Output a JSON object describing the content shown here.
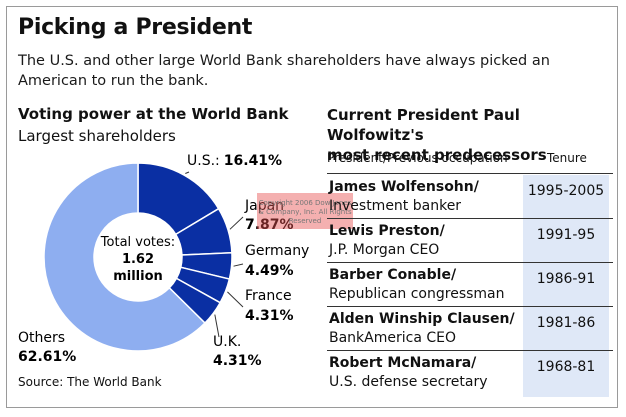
{
  "title": "Picking a President",
  "subtitle": "The U.S. and other large World Bank shareholders have always picked an American to run the bank.",
  "left": {
    "heading": "Voting power at the World Bank",
    "subheading": "Largest shareholders",
    "center_line1": "Total votes:",
    "center_line2": "1.62",
    "center_line3": "million",
    "source": "Source: The World Bank"
  },
  "chart_data": {
    "type": "pie",
    "title": "Voting power at the World Bank",
    "subtitle": "Largest shareholders",
    "center_label": "Total votes: 1.62 million",
    "slices": [
      {
        "label": "U.S.:",
        "value": 16.41,
        "value_label": "16.41%",
        "color": "#0a2fa3"
      },
      {
        "label": "Japan",
        "value": 7.87,
        "value_label": "7.87%",
        "color": "#0a2fa3"
      },
      {
        "label": "Germany",
        "value": 4.49,
        "value_label": "4.49%",
        "color": "#0a2fa3"
      },
      {
        "label": "France",
        "value": 4.31,
        "value_label": "4.31%",
        "color": "#0a2fa3"
      },
      {
        "label": "U.K.",
        "value": 4.31,
        "value_label": "4.31%",
        "color": "#0a2fa3"
      },
      {
        "label": "Others",
        "value": 62.61,
        "value_label": "62.61%",
        "color": "#8eaef0"
      }
    ]
  },
  "right": {
    "heading_line1": "Current President Paul Wolfowitz's",
    "heading_line2": "most recent predecessors",
    "col_occupation": "President/Previous occupation",
    "col_tenure": "Tenure",
    "rows": [
      {
        "name": "James Wolfensohn/",
        "occupation": "Investment banker",
        "tenure": "1995-2005"
      },
      {
        "name": "Lewis Preston/",
        "occupation": "J.P. Morgan CEO",
        "tenure": "1991-95"
      },
      {
        "name": "Barber Conable/",
        "occupation": "Republican congressman",
        "tenure": "1986-91"
      },
      {
        "name": "Alden Winship Clausen/",
        "occupation": "BankAmerica CEO",
        "tenure": "1981-86"
      },
      {
        "name": "Robert McNamara/",
        "occupation": "U.S. defense secretary",
        "tenure": "1968-81"
      }
    ]
  },
  "watermark": "Copyright 2006 Dow Jones & Company, Inc. All Rights Reserved",
  "colors": {
    "slice_dark": "#0a2fa3",
    "slice_light": "#8eaef0",
    "tenure_bg": "#dfe8f7"
  }
}
